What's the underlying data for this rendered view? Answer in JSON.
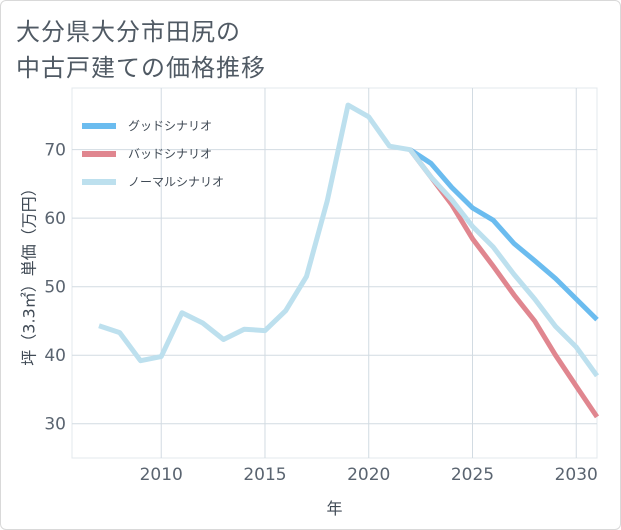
{
  "title_lines": [
    "大分県大分市田尻の",
    "中古戸建ての価格推移"
  ],
  "chart_data": {
    "type": "line",
    "title": "大分県大分市田尻の中古戸建ての価格推移",
    "xlabel": "年",
    "ylabel": "坪（3.3㎡）単価（万円）",
    "xlim": [
      2005.7,
      2031
    ],
    "ylim": [
      25,
      79
    ],
    "xticks": [
      2010,
      2015,
      2020,
      2025,
      2030
    ],
    "yticks": [
      30,
      40,
      50,
      60,
      70
    ],
    "grid": true,
    "legend_position": "top-left",
    "series": [
      {
        "name": "グッドシナリオ",
        "color": "#6bbcef",
        "x": [
          2022,
          2023,
          2024,
          2025,
          2026,
          2027,
          2028,
          2029,
          2030,
          2031
        ],
        "y": [
          70.0,
          68.0,
          64.5,
          61.5,
          59.7,
          56.3,
          53.8,
          51.2,
          48.2,
          45.2
        ]
      },
      {
        "name": "バッドシナリオ",
        "color": "#e0868f",
        "x": [
          2022,
          2023,
          2024,
          2025,
          2026,
          2027,
          2028,
          2029,
          2030,
          2031
        ],
        "y": [
          70.0,
          66.0,
          62.0,
          57.0,
          53.0,
          48.8,
          45.0,
          40.0,
          35.5,
          31.0
        ]
      },
      {
        "name": "ノーマルシナリオ",
        "color": "#bde0ee",
        "x": [
          2007,
          2008,
          2009,
          2010,
          2011,
          2012,
          2013,
          2014,
          2015,
          2016,
          2017,
          2018,
          2019,
          2020,
          2021,
          2022,
          2023,
          2024,
          2025,
          2026,
          2027,
          2028,
          2029,
          2030,
          2031
        ],
        "y": [
          44.3,
          43.3,
          39.2,
          39.8,
          46.2,
          44.7,
          42.3,
          43.8,
          43.6,
          46.5,
          51.5,
          62.5,
          76.5,
          74.8,
          70.5,
          70.0,
          66.0,
          62.7,
          58.8,
          55.8,
          51.8,
          48.2,
          44.2,
          41.2,
          37.0
        ]
      }
    ]
  }
}
